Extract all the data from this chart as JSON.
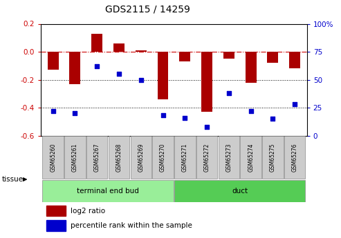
{
  "title": "GDS2115 / 14259",
  "samples": [
    "GSM65260",
    "GSM65261",
    "GSM65267",
    "GSM65268",
    "GSM65269",
    "GSM65270",
    "GSM65271",
    "GSM65272",
    "GSM65273",
    "GSM65274",
    "GSM65275",
    "GSM65276"
  ],
  "log2_ratio": [
    -0.13,
    -0.23,
    0.13,
    0.06,
    0.01,
    -0.34,
    -0.07,
    -0.43,
    -0.05,
    -0.22,
    -0.08,
    -0.12
  ],
  "percentile": [
    22,
    20,
    62,
    55,
    50,
    18,
    16,
    8,
    38,
    22,
    15,
    28
  ],
  "tissue_groups": [
    {
      "label": "terminal end bud",
      "start": 0,
      "end": 6
    },
    {
      "label": "duct",
      "start": 6,
      "end": 12
    }
  ],
  "bar_color": "#AA0000",
  "dot_color": "#0000CC",
  "ylim_left": [
    -0.6,
    0.2
  ],
  "ylim_right": [
    0,
    100
  ],
  "yticks_left": [
    -0.6,
    -0.4,
    -0.2,
    0.0,
    0.2
  ],
  "yticks_right": [
    0,
    25,
    50,
    75,
    100
  ],
  "ytick_labels_right": [
    "0",
    "25",
    "50",
    "75",
    "100%"
  ],
  "hline_dotted": [
    -0.2,
    -0.4
  ],
  "hline_dash": 0.0,
  "left_label_color": "#CC0000",
  "right_label_color": "#0000CC",
  "legend_red_label": "log2 ratio",
  "legend_blue_label": "percentile rank within the sample",
  "tissue_label": "tissue",
  "bar_width": 0.5,
  "sample_box_color": "#CCCCCC",
  "tissue_color_1": "#99EE99",
  "tissue_color_2": "#55CC55"
}
